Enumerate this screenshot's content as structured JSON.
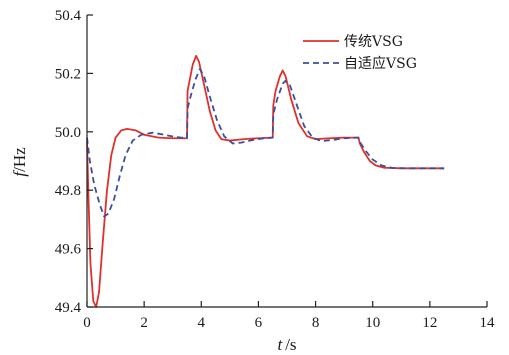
{
  "chart_data": {
    "type": "line",
    "xlabel_var": "t",
    "xlabel_unit": "/s",
    "ylabel_var": "f",
    "ylabel_unit": "/Hz",
    "xlim": [
      0,
      14
    ],
    "ylim": [
      49.4,
      50.4
    ],
    "x_ticks": [
      "0",
      "2",
      "4",
      "6",
      "8",
      "10",
      "12",
      "14"
    ],
    "y_ticks": [
      "49.4",
      "49.6",
      "49.8",
      "50.0",
      "50.2",
      "50.4"
    ],
    "legend_position": "top-right",
    "series": [
      {
        "name": "传统VSG",
        "color": "#e0302a",
        "dash": "solid",
        "points": [
          [
            0,
            49.97
          ],
          [
            0.05,
            49.78
          ],
          [
            0.12,
            49.55
          ],
          [
            0.22,
            49.42
          ],
          [
            0.32,
            49.4
          ],
          [
            0.42,
            49.45
          ],
          [
            0.55,
            49.62
          ],
          [
            0.7,
            49.8
          ],
          [
            0.85,
            49.92
          ],
          [
            1.0,
            49.98
          ],
          [
            1.2,
            50.005
          ],
          [
            1.4,
            50.01
          ],
          [
            1.7,
            50.005
          ],
          [
            2.0,
            49.99
          ],
          [
            2.5,
            49.98
          ],
          [
            3.0,
            49.978
          ],
          [
            3.5,
            49.978
          ],
          [
            3.52,
            50.14
          ],
          [
            3.6,
            50.18
          ],
          [
            3.7,
            50.23
          ],
          [
            3.82,
            50.26
          ],
          [
            3.92,
            50.24
          ],
          [
            4.1,
            50.16
          ],
          [
            4.3,
            50.07
          ],
          [
            4.5,
            50.005
          ],
          [
            4.7,
            49.975
          ],
          [
            5.0,
            49.97
          ],
          [
            5.5,
            49.975
          ],
          [
            6.0,
            49.978
          ],
          [
            6.5,
            49.98
          ],
          [
            6.52,
            50.09
          ],
          [
            6.6,
            50.14
          ],
          [
            6.75,
            50.19
          ],
          [
            6.85,
            50.21
          ],
          [
            6.95,
            50.19
          ],
          [
            7.15,
            50.11
          ],
          [
            7.4,
            50.03
          ],
          [
            7.7,
            49.985
          ],
          [
            8.0,
            49.975
          ],
          [
            8.5,
            49.978
          ],
          [
            9.0,
            49.98
          ],
          [
            9.5,
            49.98
          ],
          [
            9.55,
            49.96
          ],
          [
            9.7,
            49.93
          ],
          [
            9.9,
            49.9
          ],
          [
            10.1,
            49.885
          ],
          [
            10.4,
            49.877
          ],
          [
            11.0,
            49.875
          ],
          [
            12.5,
            49.875
          ]
        ]
      },
      {
        "name": "自适应VSG",
        "color": "#3a4fa0",
        "dash": "dashed",
        "points": [
          [
            0,
            49.98
          ],
          [
            0.1,
            49.9
          ],
          [
            0.25,
            49.82
          ],
          [
            0.45,
            49.75
          ],
          [
            0.6,
            49.71
          ],
          [
            0.75,
            49.72
          ],
          [
            0.95,
            49.77
          ],
          [
            1.15,
            49.85
          ],
          [
            1.35,
            49.92
          ],
          [
            1.6,
            49.97
          ],
          [
            1.9,
            49.99
          ],
          [
            2.3,
            49.997
          ],
          [
            2.7,
            49.99
          ],
          [
            3.1,
            49.982
          ],
          [
            3.5,
            49.978
          ],
          [
            3.52,
            50.08
          ],
          [
            3.65,
            50.13
          ],
          [
            3.8,
            50.18
          ],
          [
            3.95,
            50.215
          ],
          [
            4.1,
            50.19
          ],
          [
            4.3,
            50.12
          ],
          [
            4.55,
            50.04
          ],
          [
            4.8,
            49.985
          ],
          [
            5.1,
            49.96
          ],
          [
            5.4,
            49.963
          ],
          [
            5.8,
            49.972
          ],
          [
            6.2,
            49.978
          ],
          [
            6.5,
            49.98
          ],
          [
            6.52,
            50.06
          ],
          [
            6.65,
            50.11
          ],
          [
            6.85,
            50.165
          ],
          [
            6.95,
            50.175
          ],
          [
            7.1,
            50.16
          ],
          [
            7.35,
            50.09
          ],
          [
            7.6,
            50.02
          ],
          [
            7.9,
            49.98
          ],
          [
            8.2,
            49.968
          ],
          [
            8.6,
            49.972
          ],
          [
            9.0,
            49.978
          ],
          [
            9.5,
            49.98
          ],
          [
            9.55,
            49.965
          ],
          [
            9.75,
            49.935
          ],
          [
            10.0,
            49.905
          ],
          [
            10.3,
            49.885
          ],
          [
            10.7,
            49.876
          ],
          [
            11.2,
            49.875
          ],
          [
            12.5,
            49.875
          ]
        ]
      }
    ]
  }
}
